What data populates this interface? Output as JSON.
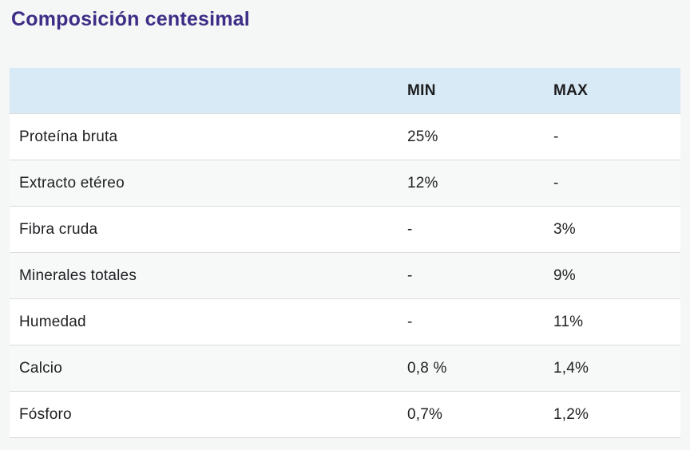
{
  "page": {
    "title": "Composición centesimal"
  },
  "theme": {
    "background": "#f5f6f6",
    "title_color": "#3e2d86",
    "header_bg": "#d8eaf5",
    "zebra_row_bg": "#f7f8f8",
    "border_color": "#dcdcdc",
    "text_color": "#212124"
  },
  "table": {
    "columns": [
      "",
      "MIN",
      "MAX"
    ],
    "rows": [
      {
        "label": "Proteína bruta",
        "min": "25%",
        "max": "-"
      },
      {
        "label": "Extracto etéreo",
        "min": "12%",
        "max": "-"
      },
      {
        "label": "Fibra cruda",
        "min": "-",
        "max": "3%"
      },
      {
        "label": "Minerales totales",
        "min": "-",
        "max": "9%"
      },
      {
        "label": "Humedad",
        "min": "-",
        "max": "11%"
      },
      {
        "label": "Calcio",
        "min": "0,8 %",
        "max": "1,4%"
      },
      {
        "label": "Fósforo",
        "min": "0,7%",
        "max": "1,2%"
      }
    ]
  }
}
